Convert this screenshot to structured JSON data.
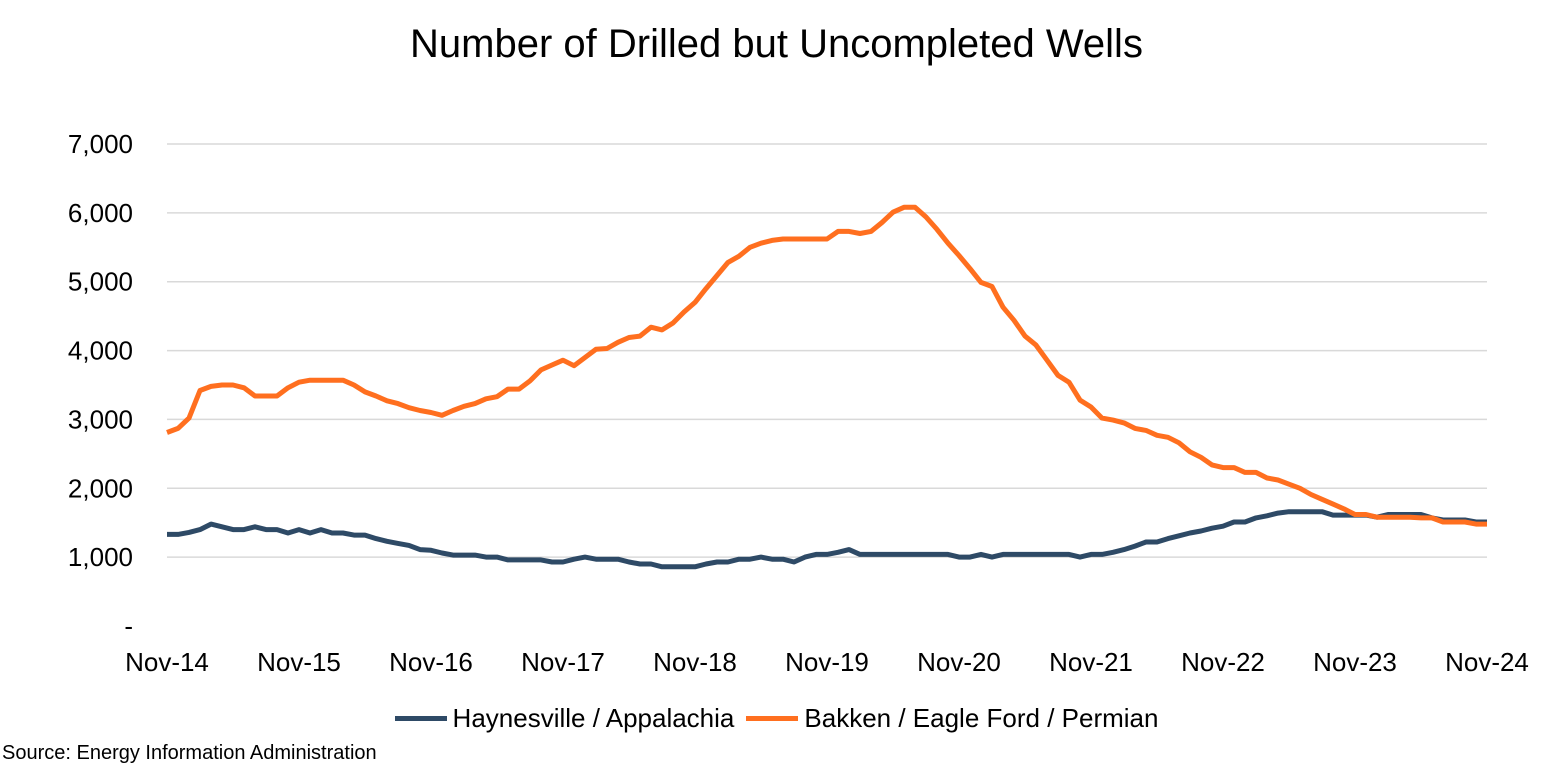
{
  "chart_data": {
    "type": "line",
    "title": "Number of Drilled but Uncompleted Wells",
    "xlabel": "",
    "ylabel": "",
    "ylim": [
      0,
      7000
    ],
    "yticks": [
      0,
      1000,
      2000,
      3000,
      4000,
      5000,
      6000,
      7000
    ],
    "ytick_labels": [
      "-",
      "1,000",
      "2,000",
      "3,000",
      "4,000",
      "5,000",
      "6,000",
      "7,000"
    ],
    "xtick_labels": [
      "Nov-14",
      "Nov-15",
      "Nov-16",
      "Nov-17",
      "Nov-18",
      "Nov-19",
      "Nov-20",
      "Nov-21",
      "Nov-22",
      "Nov-23",
      "Nov-24"
    ],
    "x_start": "Nov-14",
    "x_frequency": "monthly",
    "grid": true,
    "legend_position": "bottom",
    "series": [
      {
        "name": "Haynesville / Appalachia",
        "color": "#2E4A66",
        "values": [
          1330,
          1330,
          1360,
          1400,
          1480,
          1440,
          1400,
          1400,
          1440,
          1400,
          1400,
          1350,
          1400,
          1350,
          1400,
          1350,
          1350,
          1320,
          1320,
          1270,
          1230,
          1200,
          1170,
          1110,
          1100,
          1060,
          1030,
          1030,
          1030,
          1000,
          1000,
          960,
          960,
          960,
          960,
          930,
          930,
          970,
          1000,
          970,
          970,
          970,
          930,
          900,
          900,
          860,
          860,
          860,
          860,
          900,
          930,
          930,
          970,
          970,
          1000,
          970,
          970,
          930,
          1000,
          1040,
          1040,
          1070,
          1110,
          1040,
          1040,
          1040,
          1040,
          1040,
          1040,
          1040,
          1040,
          1040,
          1000,
          1000,
          1040,
          1000,
          1040,
          1040,
          1040,
          1040,
          1040,
          1040,
          1040,
          1000,
          1040,
          1040,
          1070,
          1110,
          1160,
          1220,
          1220,
          1270,
          1310,
          1350,
          1380,
          1420,
          1450,
          1510,
          1510,
          1570,
          1600,
          1640,
          1660,
          1660,
          1660,
          1660,
          1610,
          1610,
          1610,
          1610,
          1580,
          1620,
          1620,
          1620,
          1620,
          1570,
          1540,
          1540,
          1540,
          1510,
          1510
        ]
      },
      {
        "name": "Bakken / Eagle Ford / Permian",
        "color": "#FF6F1F",
        "values": [
          2810,
          2870,
          3020,
          3420,
          3480,
          3500,
          3500,
          3460,
          3340,
          3340,
          3340,
          3460,
          3540,
          3570,
          3570,
          3570,
          3570,
          3500,
          3400,
          3340,
          3270,
          3230,
          3170,
          3130,
          3100,
          3060,
          3130,
          3190,
          3230,
          3300,
          3330,
          3440,
          3440,
          3560,
          3720,
          3790,
          3860,
          3780,
          3900,
          4020,
          4030,
          4120,
          4190,
          4210,
          4340,
          4300,
          4400,
          4560,
          4700,
          4900,
          5090,
          5280,
          5370,
          5500,
          5560,
          5600,
          5620,
          5620,
          5620,
          5620,
          5620,
          5730,
          5730,
          5700,
          5730,
          5860,
          6010,
          6080,
          6080,
          5940,
          5760,
          5560,
          5380,
          5190,
          4990,
          4930,
          4630,
          4440,
          4210,
          4080,
          3860,
          3640,
          3540,
          3280,
          3180,
          3020,
          2990,
          2950,
          2870,
          2840,
          2770,
          2740,
          2660,
          2530,
          2450,
          2340,
          2300,
          2300,
          2230,
          2230,
          2150,
          2120,
          2060,
          2000,
          1910,
          1840,
          1770,
          1700,
          1620,
          1620,
          1580,
          1580,
          1580,
          1580,
          1570,
          1570,
          1510,
          1510,
          1510,
          1480,
          1480
        ]
      }
    ]
  },
  "source": "Source: Energy Information Administration"
}
